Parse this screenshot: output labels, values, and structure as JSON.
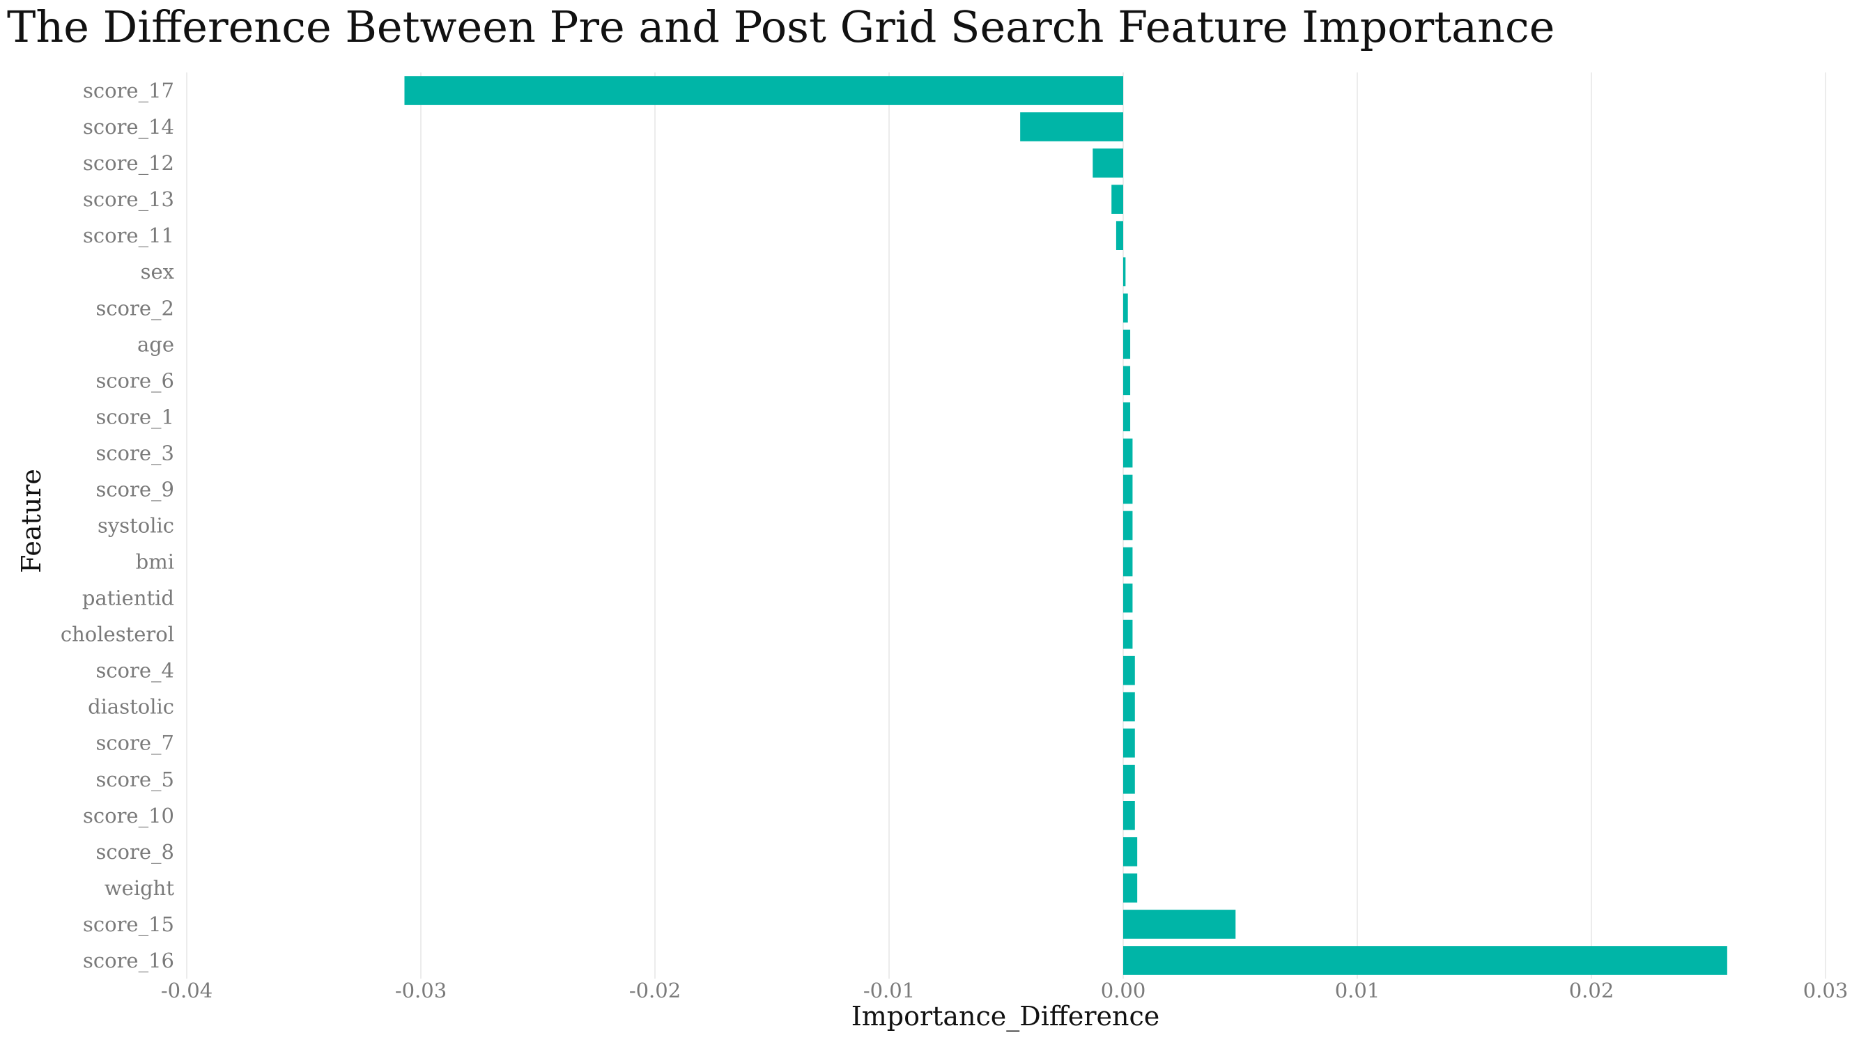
{
  "chart_data": {
    "type": "bar",
    "orientation": "horizontal",
    "title": "The Difference Between Pre and Post Grid Search Feature Importance",
    "xlabel": "Importance_Difference",
    "ylabel": "Feature",
    "xlim": [
      -0.04,
      0.03
    ],
    "xticks": [
      -0.04,
      -0.03,
      -0.02,
      -0.01,
      0.0,
      0.01,
      0.02,
      0.03
    ],
    "xtick_labels": [
      "-0.04",
      "-0.03",
      "-0.02",
      "-0.01",
      "0.00",
      "0.01",
      "0.02",
      "0.03"
    ],
    "grid": "vertical",
    "bar_color": "#00b5a7",
    "categories": [
      "score_17",
      "score_14",
      "score_12",
      "score_13",
      "score_11",
      "sex",
      "score_2",
      "age",
      "score_6",
      "score_1",
      "score_3",
      "score_9",
      "systolic",
      "bmi",
      "patientid",
      "cholesterol",
      "score_4",
      "diastolic",
      "score_7",
      "score_5",
      "score_10",
      "score_8",
      "weight",
      "score_15",
      "score_16"
    ],
    "values": [
      -0.0307,
      -0.0044,
      -0.0013,
      -0.0005,
      -0.0003,
      0.0001,
      0.0002,
      0.0003,
      0.0003,
      0.0003,
      0.0004,
      0.0004,
      0.0004,
      0.0004,
      0.0004,
      0.0004,
      0.0005,
      0.0005,
      0.0005,
      0.0005,
      0.0005,
      0.0006,
      0.0006,
      0.0048,
      0.0258
    ]
  }
}
